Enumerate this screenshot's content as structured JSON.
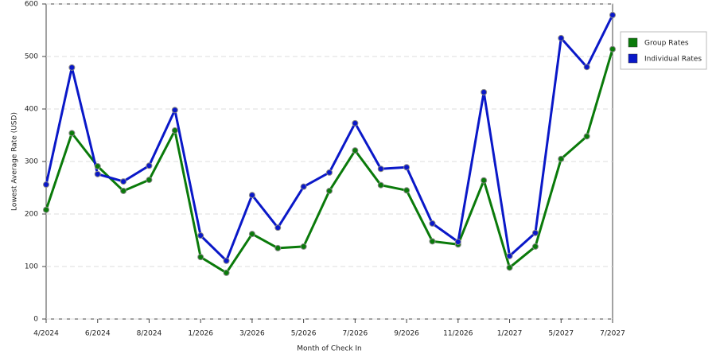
{
  "chart_data": {
    "type": "line",
    "x_label": "Month of Check In",
    "y_label": "Lowest Average Rate (USD)",
    "categories": [
      "4/2024",
      null,
      "6/2024",
      null,
      "8/2024",
      null,
      "1/2026",
      null,
      "3/2026",
      null,
      "5/2026",
      null,
      "7/2026",
      null,
      "9/2026",
      null,
      "11/2026",
      null,
      "1/2027",
      null,
      "5/2027",
      null,
      "7/2027"
    ],
    "series": [
      {
        "name": "Group Rates",
        "color": "#0a7a0a",
        "values": [
          208,
          354,
          291,
          244,
          265,
          359,
          118,
          88,
          162,
          135,
          138,
          244,
          321,
          255,
          245,
          148,
          142,
          264,
          98,
          138,
          305,
          348,
          514
        ]
      },
      {
        "name": "Individual Rates",
        "color": "#0a18c8",
        "values": [
          256,
          479,
          276,
          262,
          292,
          398,
          159,
          111,
          236,
          174,
          252,
          279,
          373,
          286,
          289,
          182,
          147,
          432,
          120,
          164,
          535,
          480,
          579
        ]
      }
    ],
    "ylim": [
      0,
      600
    ],
    "yticks": [
      0,
      100,
      200,
      300,
      400,
      500,
      600
    ],
    "grid": true,
    "legend": "right"
  }
}
